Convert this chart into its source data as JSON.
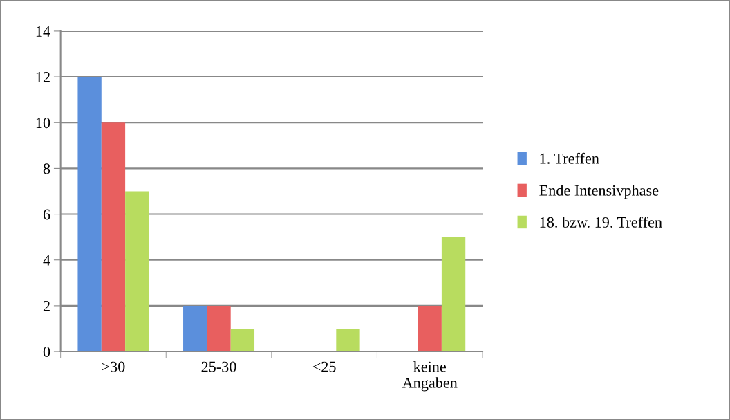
{
  "chart_data": {
    "type": "bar",
    "categories": [
      ">30",
      "25-30",
      "<25",
      "keine\nAngaben"
    ],
    "series": [
      {
        "name": "1. Treffen",
        "color": "#5b8fdc",
        "values": [
          12,
          2,
          0,
          0
        ]
      },
      {
        "name": "Ende Intensivphase",
        "color": "#e85f5f",
        "values": [
          10,
          2,
          0,
          2
        ]
      },
      {
        "name": "18. bzw. 19. Treffen",
        "color": "#b8dc5f",
        "values": [
          7,
          1,
          1,
          5
        ]
      }
    ],
    "ylim": [
      0,
      14
    ],
    "yticks": [
      0,
      2,
      4,
      6,
      8,
      10,
      12,
      14
    ],
    "grid": "y",
    "legend": "right"
  }
}
